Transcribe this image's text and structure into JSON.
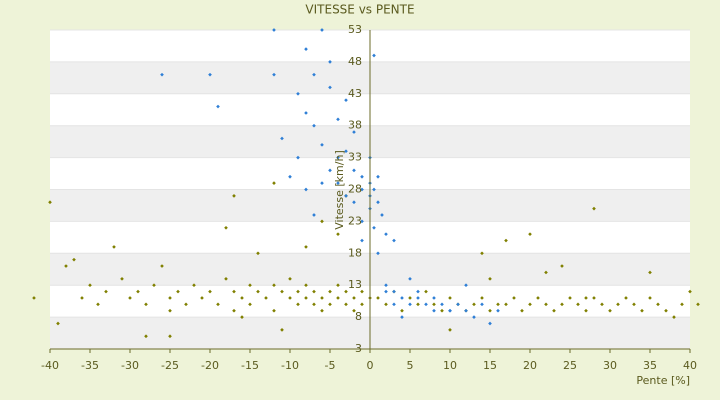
{
  "chart_data": {
    "type": "scatter",
    "title": "VITESSE vs PENTE",
    "x_label": "Pente [%]",
    "y_label": "Vitesse [km/h]",
    "xlim": [
      -40,
      40
    ],
    "ylim": [
      3,
      53
    ],
    "xticks": [
      -40,
      -35,
      -30,
      -25,
      -20,
      -15,
      -10,
      -5,
      0,
      5,
      10,
      15,
      20,
      25,
      30,
      35,
      40
    ],
    "yticks": [
      3,
      8,
      13,
      18,
      23,
      28,
      33,
      38,
      43,
      48,
      53
    ],
    "grid": true,
    "series": [
      {
        "color": "#808000",
        "x": [
          -42,
          -39,
          -38,
          -36,
          -35,
          -34,
          -33,
          -31,
          -30,
          -29,
          -28,
          -27,
          -26,
          -25,
          -25,
          -24,
          -23,
          -22,
          -21,
          -20,
          -19,
          -18,
          -17,
          -17,
          -16,
          -15,
          -15,
          -14,
          -13,
          -12,
          -12,
          -11,
          -10,
          -10,
          -9,
          -9,
          -8,
          -8,
          -7,
          -7,
          -6,
          -6,
          -5,
          -5,
          -4,
          -4,
          -3,
          -3,
          -2,
          -2,
          -1,
          -1,
          0,
          1,
          2,
          3,
          4,
          5,
          6,
          7,
          8,
          9,
          10,
          11,
          12,
          13,
          14,
          15,
          16,
          17,
          18,
          19,
          20,
          21,
          22,
          23,
          24,
          25,
          26,
          27,
          28,
          29,
          30,
          31,
          32,
          33,
          34,
          35,
          36,
          37,
          38,
          39,
          40,
          41,
          -40,
          -37,
          -32,
          -28,
          -18,
          -16,
          -14,
          -11,
          -8,
          -6,
          -4,
          -3,
          10,
          14,
          17,
          22,
          27,
          28,
          35,
          -25,
          -17,
          -12,
          15,
          20,
          24
        ],
        "values": [
          11,
          7,
          16,
          11,
          13,
          10,
          12,
          14,
          11,
          12,
          10,
          13,
          16,
          11,
          9,
          12,
          10,
          13,
          11,
          12,
          10,
          14,
          12,
          9,
          11,
          13,
          10,
          12,
          11,
          13,
          9,
          12,
          11,
          14,
          10,
          12,
          11,
          13,
          10,
          12,
          11,
          9,
          12,
          10,
          11,
          13,
          10,
          12,
          11,
          9,
          10,
          12,
          11,
          11,
          10,
          12,
          9,
          11,
          10,
          12,
          10,
          9,
          11,
          10,
          9,
          10,
          11,
          9,
          10,
          10,
          11,
          9,
          10,
          11,
          10,
          9,
          10,
          11,
          10,
          9,
          11,
          10,
          9,
          10,
          11,
          10,
          9,
          11,
          10,
          9,
          8,
          10,
          12,
          10,
          26,
          17,
          19,
          5,
          22,
          8,
          18,
          6,
          19,
          23,
          21,
          27,
          6,
          18,
          20,
          15,
          11,
          25,
          15,
          5,
          27,
          29,
          14,
          21,
          16
        ]
      },
      {
        "color": "#2f7fd6",
        "x": [
          -11,
          -10,
          -9,
          -9,
          -8,
          -8,
          -7,
          -7,
          -6,
          -6,
          -5,
          -5,
          -4,
          -4,
          -3,
          -3,
          -2,
          -2,
          -1,
          -1,
          -1,
          0,
          0,
          0,
          0,
          0.5,
          0.5,
          1,
          1,
          1.5,
          2,
          2,
          3,
          3,
          4,
          5,
          6,
          7,
          8,
          9,
          10,
          11,
          12,
          13,
          14,
          15,
          16,
          2,
          4,
          6,
          8,
          10,
          12,
          -26,
          -20,
          -19,
          -12,
          -12,
          -8,
          -5,
          -3,
          -1,
          0.5,
          1,
          -2,
          -4,
          -6,
          -7,
          3,
          5
        ],
        "values": [
          36,
          30,
          43,
          33,
          50,
          40,
          46,
          38,
          53,
          35,
          44,
          31,
          39,
          29,
          34,
          27,
          31,
          26,
          30,
          28,
          23,
          29,
          27,
          25,
          33,
          28,
          22,
          30,
          26,
          24,
          21,
          13,
          12,
          10,
          11,
          10,
          11,
          10,
          9,
          10,
          9,
          10,
          9,
          8,
          10,
          7,
          9,
          12,
          8,
          12,
          11,
          9,
          13,
          46,
          46,
          41,
          53,
          46,
          28,
          48,
          42,
          20,
          49,
          18,
          37,
          33,
          29,
          24,
          20,
          14
        ]
      }
    ]
  }
}
